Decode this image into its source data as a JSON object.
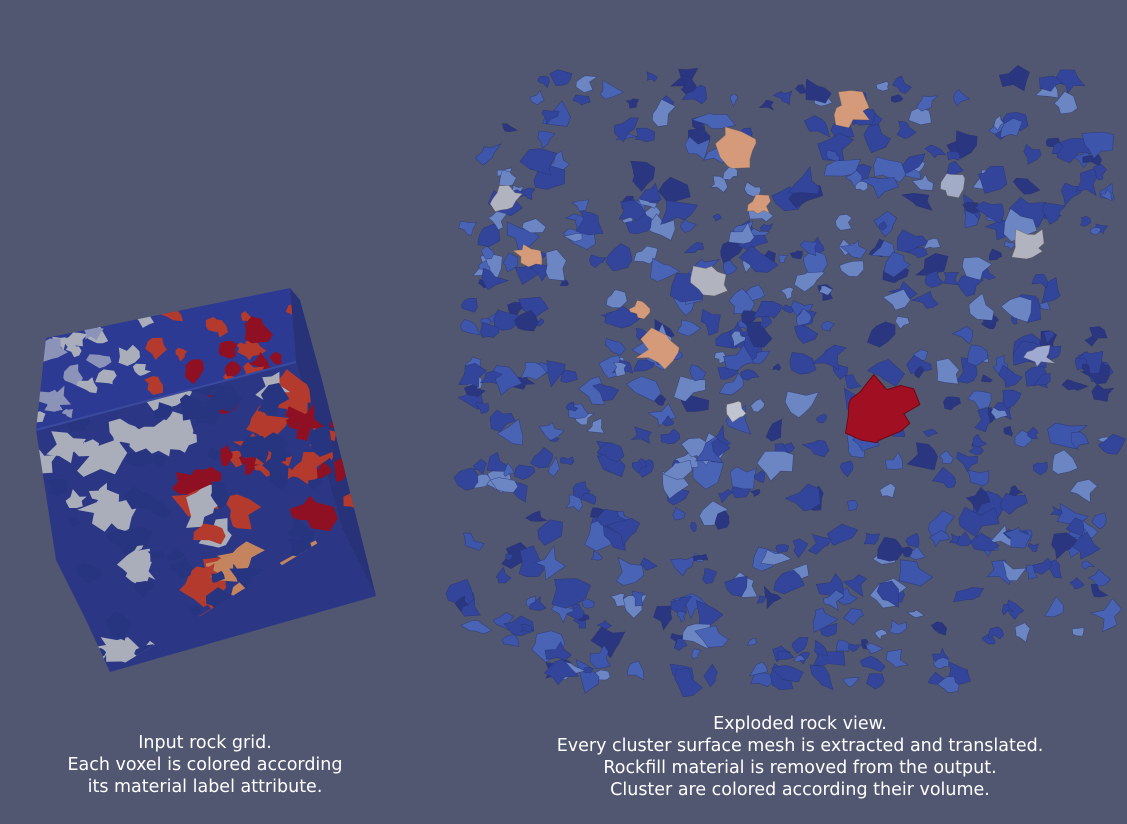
{
  "scene": {
    "background": "#525771",
    "colors": {
      "cube_top": "#2c3a93",
      "cube_front": "#2b3785",
      "cube_side": "#273278",
      "grey_material": "#a9aeba",
      "red_material": "#b33a2c",
      "dark_red_material": "#8e1022",
      "orange_material": "#c4845e",
      "fragment_blue": "#33459a",
      "fragment_light_blue": "#6c86c4",
      "fragment_dark_blue": "#2a3780",
      "fragment_orange": "#d49a7a",
      "fragment_grey": "#b1b4bf",
      "largest_cluster": "#a10f22"
    }
  },
  "captions": {
    "left": {
      "line1": "Input rock grid.",
      "line2": "Each voxel is colored according",
      "line3": "its material label attribute."
    },
    "right": {
      "line1": "Exploded rock view.",
      "line2": "Every cluster surface mesh is extracted and translated.",
      "line3": "Rockfill material is removed from the output.",
      "line4": "Cluster are colored according their volume."
    }
  }
}
